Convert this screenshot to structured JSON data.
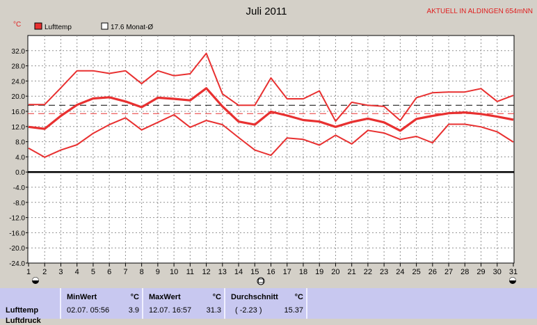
{
  "header": {
    "title": "Juli 2011",
    "station": "AKTUELL IN ALDINGEN 654mNN",
    "unit": "°C"
  },
  "legend": [
    {
      "label": "Lufttemp",
      "color": "#e83030",
      "filled": true
    },
    {
      "label": "17.6 Monat-Ø",
      "color": "#000000",
      "filled": false
    }
  ],
  "colors": {
    "series": "#e83030",
    "plot_bg": "#ffffff",
    "zero_line": "#000000",
    "frame_bg": "#d4d0c8",
    "monthly_avg": "#000000",
    "ref_line": "#e83030"
  },
  "chart_data": {
    "type": "line",
    "title": "Juli 2011",
    "ylabel": "°C",
    "xlim": [
      1,
      31
    ],
    "ylim": [
      -24,
      36
    ],
    "yticks": [
      "32.0",
      "28.0",
      "24.0",
      "20.0",
      "16.0",
      "12.0",
      "8.0",
      "4.0",
      "0.0",
      "-4.0",
      "-8.0",
      "-12.0",
      "-16.0",
      "-20.0",
      "-24.0"
    ],
    "xticks": [
      "1",
      "2",
      "3",
      "4",
      "5",
      "6",
      "7",
      "8",
      "9",
      "10",
      "11",
      "12",
      "13",
      "14",
      "15",
      "16",
      "17",
      "18",
      "19",
      "20",
      "21",
      "22",
      "23",
      "24",
      "25",
      "26",
      "27",
      "28",
      "29",
      "30",
      "31"
    ],
    "grid": true,
    "legend_position": "top-left",
    "reference_lines": [
      {
        "label": "17.6 Monat-Ø",
        "value": 17.6,
        "style": "dashed",
        "color": "#000000"
      },
      {
        "value": 15.4,
        "style": "dashed",
        "color": "#e83030"
      }
    ],
    "series": [
      {
        "name": "Lufttemp",
        "role": "max",
        "x": [
          1,
          2,
          3,
          4,
          5,
          6,
          7,
          8,
          9,
          10,
          11,
          12,
          13,
          14,
          15,
          16,
          17,
          18,
          19,
          20,
          21,
          22,
          23,
          24,
          25,
          26,
          27,
          28,
          29,
          30,
          31
        ],
        "values": [
          17.8,
          17.8,
          22.2,
          26.7,
          26.7,
          26.0,
          26.7,
          23.3,
          26.7,
          25.4,
          25.9,
          31.3,
          20.6,
          17.6,
          17.6,
          24.8,
          19.3,
          19.3,
          21.4,
          13.4,
          18.4,
          17.6,
          17.3,
          13.6,
          19.6,
          20.9,
          21.1,
          21.1,
          22.0,
          18.6,
          20.2
        ]
      },
      {
        "name": "Lufttemp",
        "role": "mean",
        "x": [
          1,
          2,
          3,
          4,
          5,
          6,
          7,
          8,
          9,
          10,
          11,
          12,
          13,
          14,
          15,
          16,
          17,
          18,
          19,
          20,
          21,
          22,
          23,
          24,
          25,
          26,
          27,
          28,
          29,
          30,
          31
        ],
        "values": [
          11.9,
          11.4,
          14.8,
          17.7,
          19.4,
          19.7,
          18.6,
          17.1,
          19.6,
          19.3,
          18.9,
          22.1,
          17.3,
          13.3,
          12.5,
          15.9,
          14.9,
          13.7,
          13.3,
          11.9,
          13.2,
          14.1,
          13.1,
          10.9,
          14.0,
          14.8,
          15.5,
          15.7,
          15.3,
          14.6,
          13.8
        ]
      },
      {
        "name": "Lufttemp",
        "role": "min",
        "x": [
          1,
          2,
          3,
          4,
          5,
          6,
          7,
          8,
          9,
          10,
          11,
          12,
          13,
          14,
          15,
          16,
          17,
          18,
          19,
          20,
          21,
          22,
          23,
          24,
          25,
          26,
          27,
          28,
          29,
          30,
          31
        ],
        "values": [
          6.3,
          3.9,
          5.8,
          7.2,
          10.2,
          12.5,
          14.3,
          11.1,
          13.1,
          15.1,
          11.8,
          13.6,
          12.5,
          9.1,
          5.8,
          4.4,
          9.0,
          8.6,
          7.1,
          9.7,
          7.4,
          11.0,
          10.3,
          8.6,
          9.4,
          7.7,
          12.6,
          12.6,
          11.9,
          10.6,
          7.9
        ]
      }
    ]
  },
  "stats": {
    "row_label": "Lufttemp",
    "row_label_2": "Luftdruck",
    "min": {
      "header": "MinWert",
      "unit": "°C",
      "date": "02.07.  05:56",
      "value": "3.9"
    },
    "max": {
      "header": "MaxWert",
      "unit": "°C",
      "date": "12.07.  16:57",
      "value": "31.3"
    },
    "avg": {
      "header": "Durchschnitt",
      "unit": "°C",
      "delta": "( -2.23 )",
      "value": "15.37"
    }
  }
}
